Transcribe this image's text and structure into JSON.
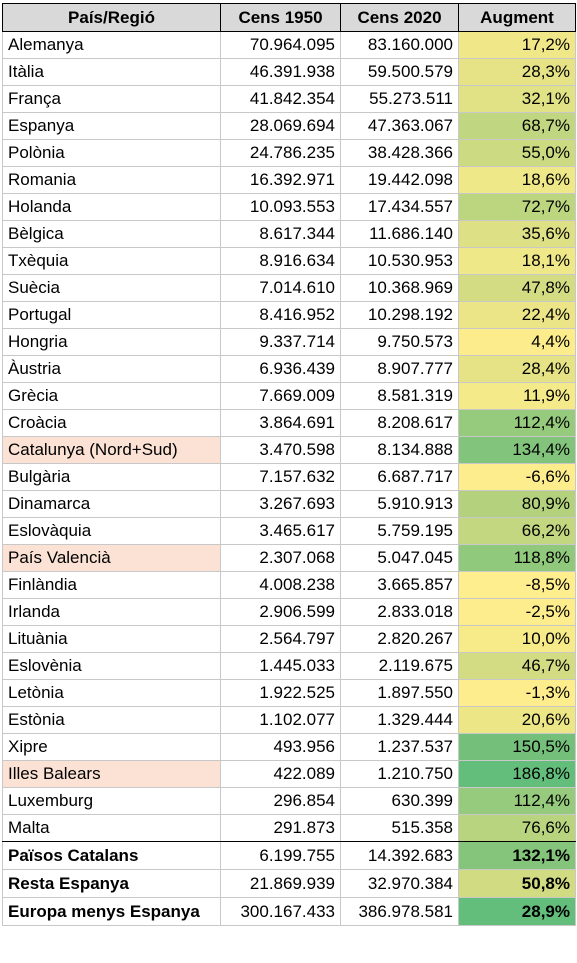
{
  "headers": [
    "País/Regió",
    "Cens 1950",
    "Cens 2020",
    "Augment"
  ],
  "rows": [
    {
      "name": "Alemanya",
      "c1950": "70.964.095",
      "c2020": "83.160.000",
      "aug": "17,2%",
      "color": "#f0e888",
      "hl": false
    },
    {
      "name": "Itàlia",
      "c1950": "46.391.938",
      "c2020": "59.500.579",
      "aug": "28,3%",
      "color": "#e5e386",
      "hl": false
    },
    {
      "name": "França",
      "c1950": "41.842.354",
      "c2020": "55.273.511",
      "aug": "32,1%",
      "color": "#e1e185",
      "hl": false
    },
    {
      "name": "Espanya",
      "c1950": "28.069.694",
      "c2020": "47.363.067",
      "aug": "68,7%",
      "color": "#c0d680",
      "hl": false
    },
    {
      "name": "Polònia",
      "c1950": "24.786.235",
      "c2020": "38.428.366",
      "aug": "55,0%",
      "color": "#ccda82",
      "hl": false
    },
    {
      "name": "Romania",
      "c1950": "16.392.971",
      "c2020": "19.442.098",
      "aug": "18,6%",
      "color": "#efe888",
      "hl": false
    },
    {
      "name": "Holanda",
      "c1950": "10.093.553",
      "c2020": "17.434.557",
      "aug": "72,7%",
      "color": "#bcd57f",
      "hl": false
    },
    {
      "name": "Bèlgica",
      "c1950": "8.617.344",
      "c2020": "11.686.140",
      "aug": "35,6%",
      "color": "#dee085",
      "hl": false
    },
    {
      "name": "Txèquia",
      "c1950": "8.916.634",
      "c2020": "10.530.953",
      "aug": "18,1%",
      "color": "#efe888",
      "hl": false
    },
    {
      "name": "Suècia",
      "c1950": "7.014.610",
      "c2020": "10.368.969",
      "aug": "47,8%",
      "color": "#d3dc83",
      "hl": false
    },
    {
      "name": "Portugal",
      "c1950": "8.416.952",
      "c2020": "10.298.192",
      "aug": "22,4%",
      "color": "#ebe587",
      "hl": false
    },
    {
      "name": "Hongria",
      "c1950": "9.337.714",
      "c2020": "9.750.573",
      "aug": "4,4%",
      "color": "#fcec8b",
      "hl": false
    },
    {
      "name": "Àustria",
      "c1950": "6.936.439",
      "c2020": "8.907.777",
      "aug": "28,4%",
      "color": "#e5e386",
      "hl": false
    },
    {
      "name": "Grècia",
      "c1950": "7.669.009",
      "c2020": "8.581.319",
      "aug": "11,9%",
      "color": "#f5ea89",
      "hl": false
    },
    {
      "name": "Croàcia",
      "c1950": "3.864.691",
      "c2020": "8.208.617",
      "aug": "112,4%",
      "color": "#96ca7c",
      "hl": false
    },
    {
      "name": "Catalunya (Nord+Sud)",
      "c1950": "3.470.598",
      "c2020": "8.134.888",
      "aug": "134,4%",
      "color": "#82c47b",
      "hl": true
    },
    {
      "name": "Bulgària",
      "c1950": "7.157.632",
      "c2020": "6.687.717",
      "aug": "-6,6%",
      "color": "#feed8d",
      "hl": false
    },
    {
      "name": "Dinamarca",
      "c1950": "3.267.693",
      "c2020": "5.910.913",
      "aug": "80,9%",
      "color": "#b4d27e",
      "hl": false
    },
    {
      "name": "Eslovàquia",
      "c1950": "3.465.617",
      "c2020": "5.759.195",
      "aug": "66,2%",
      "color": "#c2d780",
      "hl": false
    },
    {
      "name": "País Valencià",
      "c1950": "2.307.068",
      "c2020": "5.047.045",
      "aug": "118,8%",
      "color": "#90c87c",
      "hl": true
    },
    {
      "name": "Finlàndia",
      "c1950": "4.008.238",
      "c2020": "3.665.857",
      "aug": "-8,5%",
      "color": "#ffee8e",
      "hl": false
    },
    {
      "name": "Irlanda",
      "c1950": "2.906.599",
      "c2020": "2.833.018",
      "aug": "-2,5%",
      "color": "#feed8d",
      "hl": false
    },
    {
      "name": "Lituània",
      "c1950": "2.564.797",
      "c2020": "2.820.267",
      "aug": "10,0%",
      "color": "#f7ea89",
      "hl": false
    },
    {
      "name": "Eslovènia",
      "c1950": "1.445.033",
      "c2020": "2.119.675",
      "aug": "46,7%",
      "color": "#d4dc83",
      "hl": false
    },
    {
      "name": "Letònia",
      "c1950": "1.922.525",
      "c2020": "1.897.550",
      "aug": "-1,3%",
      "color": "#feed8c",
      "hl": false
    },
    {
      "name": "Estònia",
      "c1950": "1.102.077",
      "c2020": "1.329.444",
      "aug": "20,6%",
      "color": "#ede687",
      "hl": false
    },
    {
      "name": "Xipre",
      "c1950": "493.956",
      "c2020": "1.237.537",
      "aug": "150,5%",
      "color": "#74c07a",
      "hl": false
    },
    {
      "name": "Illes Balears",
      "c1950": "422.089",
      "c2020": "1.210.750",
      "aug": "186,8%",
      "color": "#63be7b",
      "hl": true
    },
    {
      "name": "Luxemburg",
      "c1950": "296.854",
      "c2020": "630.399",
      "aug": "112,4%",
      "color": "#96ca7c",
      "hl": false
    },
    {
      "name": "Malta",
      "c1950": "291.873",
      "c2020": "515.358",
      "aug": "76,6%",
      "color": "#b8d47f",
      "hl": false
    }
  ],
  "totals": [
    {
      "name": "Països Catalans",
      "c1950": "6.199.755",
      "c2020": "14.392.683",
      "aug": "132,1%",
      "color": "#84c57b"
    },
    {
      "name": "Resta Espanya",
      "c1950": "21.869.939",
      "c2020": "32.970.384",
      "aug": "50,8%",
      "color": "#d0db82"
    },
    {
      "name": "Europa menys Espanya",
      "c1950": "300.167.433",
      "c2020": "386.978.581",
      "aug": "28,9%",
      "color": "#63be7b"
    }
  ]
}
